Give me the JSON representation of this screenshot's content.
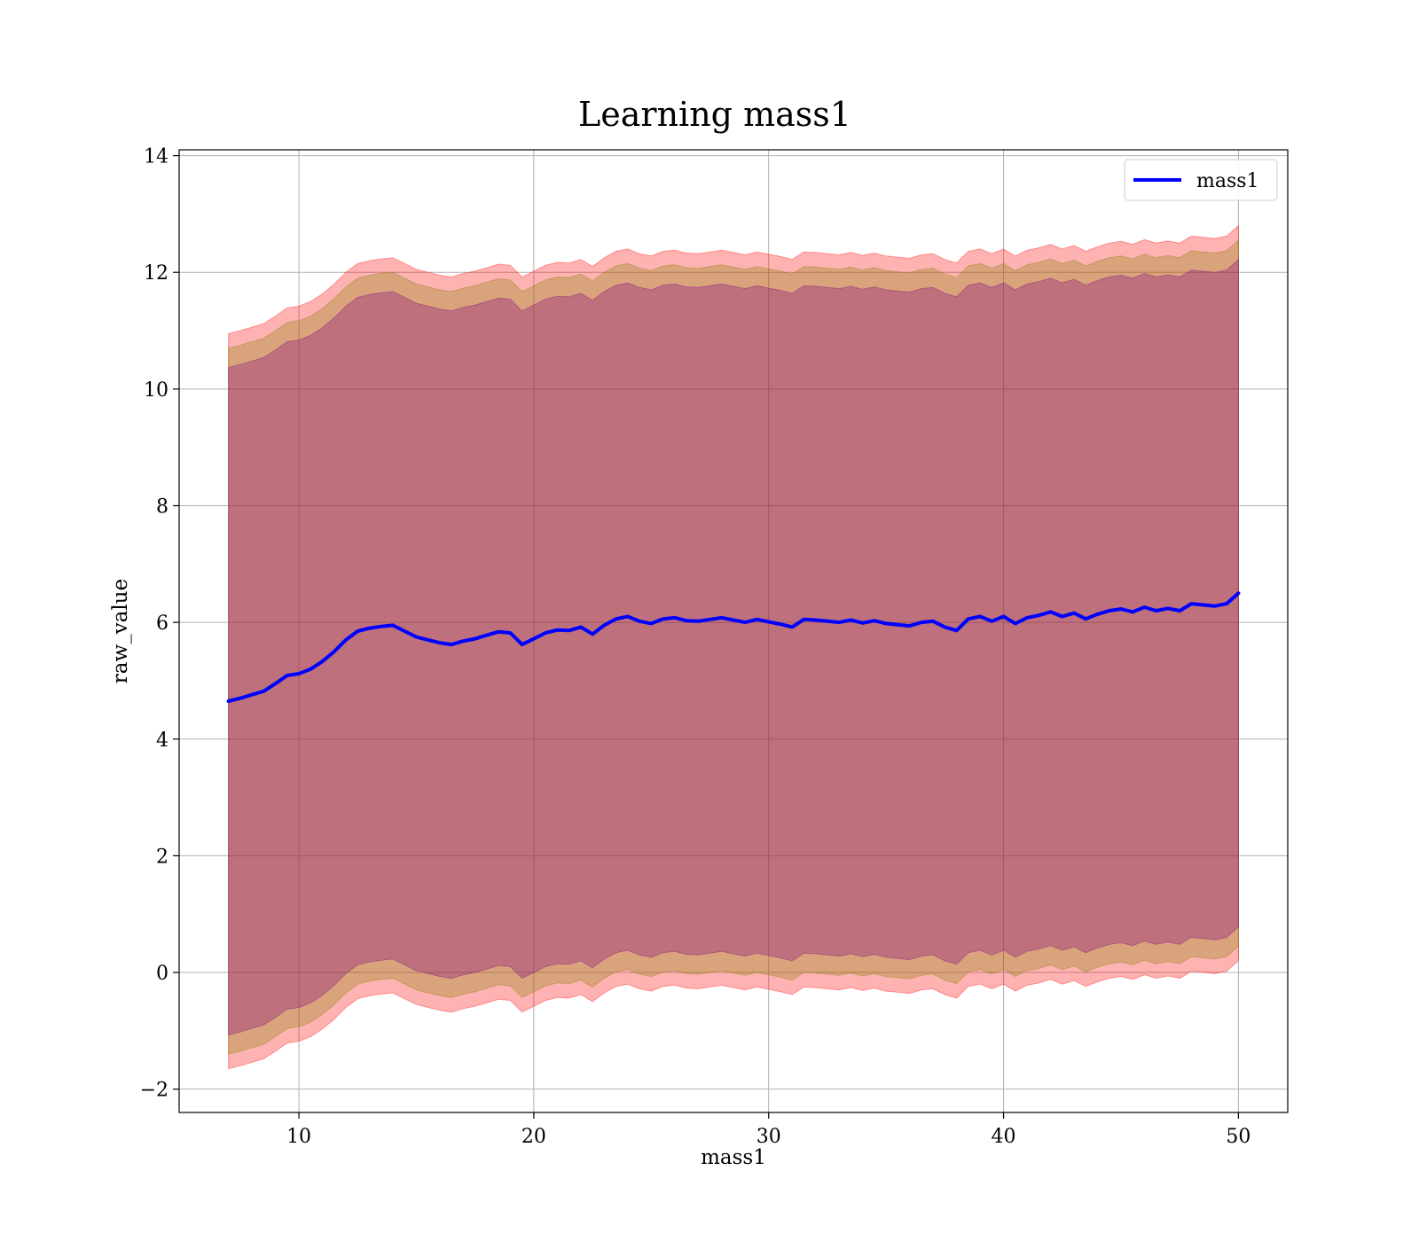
{
  "chart_data": {
    "type": "line",
    "title": "Learning mass1",
    "xlabel": "mass1",
    "ylabel": "raw_value",
    "xlim": [
      4.9,
      52.1
    ],
    "ylim": [
      -2.4,
      14.1
    ],
    "xticks": [
      10,
      20,
      30,
      40,
      50
    ],
    "xtick_labels": [
      "10",
      "20",
      "30",
      "40",
      "50"
    ],
    "yticks": [
      -2,
      0,
      2,
      4,
      6,
      8,
      10,
      12,
      14
    ],
    "ytick_labels": [
      "−2",
      "0",
      "2",
      "4",
      "6",
      "8",
      "10",
      "12",
      "14"
    ],
    "grid": true,
    "legend": {
      "location": "upper right",
      "entries": [
        "mass1"
      ]
    },
    "colors": {
      "line": "#0000ff",
      "band_outer": "#ff0000",
      "band_mid": "#808000",
      "band_inner": "#800080"
    },
    "series": [
      {
        "name": "mass1",
        "kind": "line",
        "x": [
          7.0,
          7.5,
          8.0,
          8.5,
          9.0,
          9.5,
          10.0,
          10.5,
          11.0,
          11.5,
          12.0,
          12.5,
          13.0,
          13.5,
          14.0,
          14.5,
          15.0,
          15.5,
          16.0,
          16.5,
          17.0,
          17.5,
          18.0,
          18.5,
          19.0,
          19.5,
          20.0,
          20.5,
          21.0,
          21.5,
          22.0,
          22.5,
          23.0,
          23.5,
          24.0,
          24.5,
          25.0,
          25.5,
          26.0,
          26.5,
          27.0,
          27.5,
          28.0,
          28.5,
          29.0,
          29.5,
          30.0,
          30.5,
          31.0,
          31.5,
          32.0,
          32.5,
          33.0,
          33.5,
          34.0,
          34.5,
          35.0,
          35.5,
          36.0,
          36.5,
          37.0,
          37.5,
          38.0,
          38.5,
          39.0,
          39.5,
          40.0,
          40.5,
          41.0,
          41.5,
          42.0,
          42.5,
          43.0,
          43.5,
          44.0,
          44.5,
          45.0,
          45.5,
          46.0,
          46.5,
          47.0,
          47.5,
          48.0,
          48.5,
          49.0,
          49.5,
          50.0
        ],
        "y": [
          4.65,
          4.7,
          4.76,
          4.82,
          4.95,
          5.09,
          5.12,
          5.2,
          5.33,
          5.5,
          5.7,
          5.85,
          5.9,
          5.93,
          5.95,
          5.85,
          5.75,
          5.7,
          5.65,
          5.62,
          5.68,
          5.72,
          5.78,
          5.84,
          5.82,
          5.62,
          5.72,
          5.82,
          5.87,
          5.86,
          5.92,
          5.8,
          5.95,
          6.06,
          6.1,
          6.02,
          5.98,
          6.06,
          6.08,
          6.03,
          6.02,
          6.05,
          6.08,
          6.04,
          6.0,
          6.05,
          6.01,
          5.97,
          5.92,
          6.05,
          6.04,
          6.02,
          6.0,
          6.04,
          5.99,
          6.03,
          5.98,
          5.96,
          5.94,
          6.0,
          6.02,
          5.92,
          5.86,
          6.06,
          6.1,
          6.02,
          6.1,
          5.98,
          6.08,
          6.12,
          6.18,
          6.1,
          6.16,
          6.06,
          6.14,
          6.2,
          6.23,
          6.18,
          6.26,
          6.2,
          6.24,
          6.2,
          6.32,
          6.3,
          6.28,
          6.32,
          6.5
        ]
      },
      {
        "name": "",
        "kind": "band",
        "label": "outer band",
        "x": [
          7.0,
          7.5,
          8.0,
          8.5,
          9.0,
          9.5,
          10.0,
          10.5,
          11.0,
          11.5,
          12.0,
          12.5,
          13.0,
          13.5,
          14.0,
          14.5,
          15.0,
          15.5,
          16.0,
          16.5,
          17.0,
          17.5,
          18.0,
          18.5,
          19.0,
          19.5,
          20.0,
          20.5,
          21.0,
          21.5,
          22.0,
          22.5,
          23.0,
          23.5,
          24.0,
          24.5,
          25.0,
          25.5,
          26.0,
          26.5,
          27.0,
          27.5,
          28.0,
          28.5,
          29.0,
          29.5,
          30.0,
          30.5,
          31.0,
          31.5,
          32.0,
          32.5,
          33.0,
          33.5,
          34.0,
          34.5,
          35.0,
          35.5,
          36.0,
          36.5,
          37.0,
          37.5,
          38.0,
          38.5,
          39.0,
          39.5,
          40.0,
          40.5,
          41.0,
          41.5,
          42.0,
          42.5,
          43.0,
          43.5,
          44.0,
          44.5,
          45.0,
          45.5,
          46.0,
          46.5,
          47.0,
          47.5,
          48.0,
          48.5,
          49.0,
          49.5,
          50.0
        ],
        "half_width": 6.3
      },
      {
        "name": "",
        "kind": "band",
        "label": "middle band",
        "x": [
          7.0,
          7.5,
          8.0,
          8.5,
          9.0,
          9.5,
          10.0,
          10.5,
          11.0,
          11.5,
          12.0,
          12.5,
          13.0,
          13.5,
          14.0,
          14.5,
          15.0,
          15.5,
          16.0,
          16.5,
          17.0,
          17.5,
          18.0,
          18.5,
          19.0,
          19.5,
          20.0,
          20.5,
          21.0,
          21.5,
          22.0,
          22.5,
          23.0,
          23.5,
          24.0,
          24.5,
          25.0,
          25.5,
          26.0,
          26.5,
          27.0,
          27.5,
          28.0,
          28.5,
          29.0,
          29.5,
          30.0,
          30.5,
          31.0,
          31.5,
          32.0,
          32.5,
          33.0,
          33.5,
          34.0,
          34.5,
          35.0,
          35.5,
          36.0,
          36.5,
          37.0,
          37.5,
          38.0,
          38.5,
          39.0,
          39.5,
          40.0,
          40.5,
          41.0,
          41.5,
          42.0,
          42.5,
          43.0,
          43.5,
          44.0,
          44.5,
          45.0,
          45.5,
          46.0,
          46.5,
          47.0,
          47.5,
          48.0,
          48.5,
          49.0,
          49.5,
          50.0
        ],
        "half_width": 6.05
      },
      {
        "name": "",
        "kind": "band",
        "label": "inner band",
        "x": [
          7.0,
          7.5,
          8.0,
          8.5,
          9.0,
          9.5,
          10.0,
          10.5,
          11.0,
          11.5,
          12.0,
          12.5,
          13.0,
          13.5,
          14.0,
          14.5,
          15.0,
          15.5,
          16.0,
          16.5,
          17.0,
          17.5,
          18.0,
          18.5,
          19.0,
          19.5,
          20.0,
          20.5,
          21.0,
          21.5,
          22.0,
          22.5,
          23.0,
          23.5,
          24.0,
          24.5,
          25.0,
          25.5,
          26.0,
          26.5,
          27.0,
          27.5,
          28.0,
          28.5,
          29.0,
          29.5,
          30.0,
          30.5,
          31.0,
          31.5,
          32.0,
          32.5,
          33.0,
          33.5,
          34.0,
          34.5,
          35.0,
          35.5,
          36.0,
          36.5,
          37.0,
          37.5,
          38.0,
          38.5,
          39.0,
          39.5,
          40.0,
          40.5,
          41.0,
          41.5,
          42.0,
          42.5,
          43.0,
          43.5,
          44.0,
          44.5,
          45.0,
          45.5,
          46.0,
          46.5,
          47.0,
          47.5,
          48.0,
          48.5,
          49.0,
          49.5,
          50.0
        ],
        "half_width": 5.72
      }
    ]
  }
}
